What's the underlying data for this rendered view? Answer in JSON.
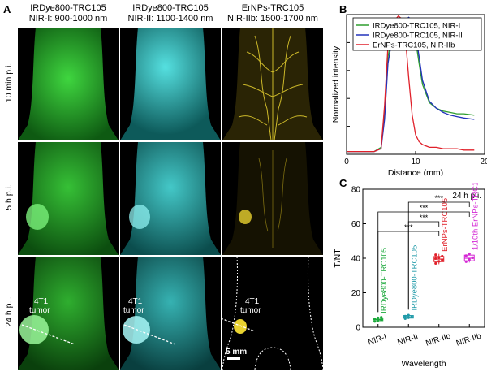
{
  "panel_a": {
    "label": "A",
    "columns": [
      {
        "line1": "IRDye800-TRC105",
        "line2": "NIR-I: 900-1000 nm",
        "color": "#2ec92e"
      },
      {
        "line1": "IRDye800-TRC105",
        "line2": "NIR-II: 1100-1400 nm",
        "color": "#2fc9c9"
      },
      {
        "line1": "ErNPs-TRC105",
        "line2": "NIR-IIb: 1500-1700 nm",
        "color": "#d8c21a"
      }
    ],
    "rows": [
      "10 min p.i.",
      "5 h p.i.",
      "24 h p.i."
    ],
    "tumor_label_line1": "4T1",
    "tumor_label_line2": "tumor",
    "scale_bar": "5 mm"
  },
  "chart_data": [
    {
      "panel": "B",
      "type": "line",
      "xlabel": "Distance (mm)",
      "ylabel": "Normalized intensity",
      "xlim": [
        0,
        20
      ],
      "ylim": [
        0,
        1.0
      ],
      "xticks": [
        0,
        10,
        20
      ],
      "yticks": [
        0.0,
        0.2,
        0.4,
        0.6,
        0.8,
        1.0
      ],
      "legend_placement": "top-right",
      "series": [
        {
          "name": "IRDye800-TRC105, NIR-I",
          "color": "#2e9e2e",
          "x": [
            0,
            2,
            4,
            5,
            5.5,
            6,
            6.5,
            7,
            7.5,
            8,
            8.5,
            9,
            9.5,
            10,
            10.5,
            11,
            12,
            13,
            14,
            15,
            16,
            17,
            18.5
          ],
          "y": [
            0.02,
            0.02,
            0.02,
            0.05,
            0.3,
            0.7,
            0.82,
            0.87,
            0.9,
            0.95,
            0.97,
            0.97,
            0.95,
            0.82,
            0.65,
            0.5,
            0.37,
            0.33,
            0.31,
            0.3,
            0.29,
            0.29,
            0.28
          ]
        },
        {
          "name": "IRDye800-TRC105, NIR-II",
          "color": "#2233bb",
          "x": [
            0,
            2,
            4,
            5,
            5.5,
            6,
            6.5,
            7,
            7.5,
            8,
            8.5,
            9,
            9.5,
            10,
            10.5,
            11,
            12,
            13,
            14,
            15,
            16,
            17,
            18.5
          ],
          "y": [
            0.02,
            0.02,
            0.02,
            0.04,
            0.25,
            0.65,
            0.8,
            0.86,
            0.9,
            0.93,
            0.96,
            0.98,
            0.96,
            0.86,
            0.7,
            0.53,
            0.38,
            0.33,
            0.3,
            0.28,
            0.27,
            0.26,
            0.25
          ]
        },
        {
          "name": "ErNPs-TRC105, NIR-IIb",
          "color": "#e0202a",
          "x": [
            0,
            2,
            4,
            5,
            5.5,
            6,
            6.5,
            7,
            7.5,
            8,
            8.5,
            9,
            9.5,
            10,
            10.5,
            11,
            12,
            13,
            14,
            15,
            16,
            17,
            18.5
          ],
          "y": [
            0.02,
            0.02,
            0.02,
            0.04,
            0.35,
            0.78,
            0.9,
            0.96,
            0.99,
            0.97,
            0.85,
            0.55,
            0.28,
            0.14,
            0.09,
            0.07,
            0.05,
            0.05,
            0.04,
            0.04,
            0.04,
            0.03,
            0.03
          ]
        }
      ]
    },
    {
      "panel": "C",
      "type": "box",
      "xlabel": "Wavelength",
      "ylabel": "T/NT",
      "ylim": [
        0,
        80
      ],
      "yticks": [
        0,
        20,
        40,
        60,
        80
      ],
      "annotation": "24 h p.i.",
      "significance": "***",
      "categories": [
        "NIR-I",
        "NIR-II",
        "NIR-IIb",
        "NIR-IIb"
      ],
      "series": [
        {
          "name": "IRDye800-TRC105",
          "color": "#1aa83a",
          "median": 4.5,
          "q1": 3.8,
          "q3": 5.3,
          "min": 3.2,
          "max": 6.0,
          "points": [
            3.4,
            4.0,
            4.5,
            4.9,
            5.4,
            5.8
          ]
        },
        {
          "name": "IRDye800-TRC105",
          "color": "#1f9aa8",
          "median": 6.0,
          "q1": 5.3,
          "q3": 6.8,
          "min": 4.8,
          "max": 7.4,
          "points": [
            5.0,
            5.6,
            6.0,
            6.4,
            7.0
          ]
        },
        {
          "name": "ErNPs-TRC105",
          "color": "#e0202a",
          "median": 39.5,
          "q1": 38.0,
          "q3": 41.0,
          "min": 36.5,
          "max": 42.5,
          "points": [
            37.0,
            38.2,
            39.0,
            39.8,
            40.5,
            41.2,
            42.0
          ]
        },
        {
          "name": "1/10th ErNPs-TRC105",
          "color": "#d428d4",
          "median": 40.0,
          "q1": 38.5,
          "q3": 41.8,
          "min": 37.5,
          "max": 43.0,
          "points": [
            38.0,
            39.2,
            40.3,
            41.5,
            42.6
          ]
        }
      ],
      "comparisons": [
        {
          "from": 0,
          "to": 2
        },
        {
          "from": 1,
          "to": 2
        },
        {
          "from": 0,
          "to": 3
        },
        {
          "from": 1,
          "to": 3
        }
      ]
    }
  ],
  "panel_b_label": "B",
  "panel_c_label": "C",
  "ticks_c_superscript": "th"
}
